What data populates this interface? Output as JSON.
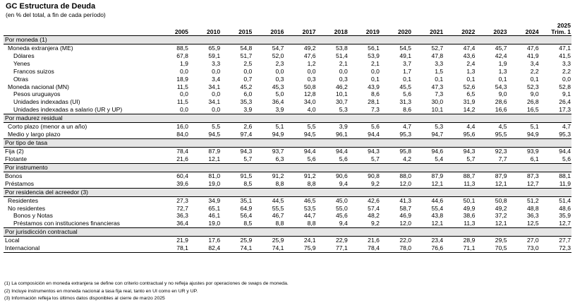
{
  "title": "GC Estructura de Deuda",
  "subtitle": "(en % del total, a fin de cada período)",
  "columns": [
    "2005",
    "2010",
    "2015",
    "2016",
    "2017",
    "2018",
    "2019",
    "2020",
    "2021",
    "2022",
    "2023",
    "2024"
  ],
  "last_column": {
    "line1": "2025",
    "line2": "Trim. 1"
  },
  "sections": [
    {
      "title": "Por moneda (1)",
      "rows": [
        {
          "label": "Moneda extranjera (ME)",
          "level": 1,
          "values": [
            "88,5",
            "65,9",
            "54,8",
            "54,7",
            "49,2",
            "53,8",
            "56,1",
            "54,5",
            "52,7",
            "47,4",
            "45,7",
            "47,6",
            "47,1"
          ]
        },
        {
          "label": "Dólares",
          "level": 2,
          "values": [
            "67,8",
            "59,1",
            "51,7",
            "52,0",
            "47,6",
            "51,4",
            "53,9",
            "49,1",
            "47,8",
            "43,6",
            "42,4",
            "41,9",
            "41,5"
          ]
        },
        {
          "label": "Yenes",
          "level": 2,
          "values": [
            "1,9",
            "3,3",
            "2,5",
            "2,3",
            "1,2",
            "2,1",
            "2,1",
            "3,7",
            "3,3",
            "2,4",
            "1,9",
            "3,4",
            "3,3"
          ]
        },
        {
          "label": "Francos suizos",
          "level": 2,
          "values": [
            "0,0",
            "0,0",
            "0,0",
            "0,0",
            "0,0",
            "0,0",
            "0,0",
            "1,7",
            "1,5",
            "1,3",
            "1,3",
            "2,2",
            "2,2"
          ]
        },
        {
          "label": "Otras",
          "level": 2,
          "values": [
            "18,9",
            "3,4",
            "0,7",
            "0,3",
            "0,3",
            "0,3",
            "0,1",
            "0,1",
            "0,1",
            "0,1",
            "0,1",
            "0,1",
            "0,0"
          ]
        },
        {
          "label": "Moneda nacional (MN)",
          "level": 1,
          "values": [
            "11,5",
            "34,1",
            "45,2",
            "45,3",
            "50,8",
            "46,2",
            "43,9",
            "45,5",
            "47,3",
            "52,6",
            "54,3",
            "52,3",
            "52,8"
          ]
        },
        {
          "label": "Pesos uruguayos",
          "level": 2,
          "values": [
            "0,0",
            "0,0",
            "6,0",
            "5,0",
            "12,8",
            "10,1",
            "8,6",
            "5,6",
            "7,3",
            "6,5",
            "9,0",
            "9,0",
            "9,1"
          ]
        },
        {
          "label": "Unidades indexadas (UI)",
          "level": 2,
          "values": [
            "11,5",
            "34,1",
            "35,3",
            "36,4",
            "34,0",
            "30,7",
            "28,1",
            "31,3",
            "30,0",
            "31,9",
            "28,6",
            "26,8",
            "26,4"
          ]
        },
        {
          "label": "Unidades indexadas a salario (UR y UP)",
          "level": 2,
          "values": [
            "0,0",
            "0,0",
            "3,9",
            "3,9",
            "4,0",
            "5,3",
            "7,3",
            "8,6",
            "10,1",
            "14,2",
            "16,6",
            "16,5",
            "17,3"
          ]
        }
      ]
    },
    {
      "title": "Por madurez residual",
      "rows": [
        {
          "label": "Corto plazo (menor a un año)",
          "level": 1,
          "values": [
            "16,0",
            "5,5",
            "2,6",
            "5,1",
            "5,5",
            "3,9",
            "5,6",
            "4,7",
            "5,3",
            "4,4",
            "4,5",
            "5,1",
            "4,7"
          ]
        },
        {
          "label": "Medio y largo plazo",
          "level": 1,
          "values": [
            "84,0",
            "94,5",
            "97,4",
            "94,9",
            "94,5",
            "96,1",
            "94,4",
            "95,3",
            "94,7",
            "95,6",
            "95,5",
            "94,9",
            "95,3"
          ]
        }
      ]
    },
    {
      "title": "Por tipo de tasa",
      "rows": [
        {
          "label": "Fija (2)",
          "level": 0,
          "values": [
            "78,4",
            "87,9",
            "94,3",
            "93,7",
            "94,4",
            "94,4",
            "94,3",
            "95,8",
            "94,6",
            "94,3",
            "92,3",
            "93,9",
            "94,4"
          ]
        },
        {
          "label": "Flotante",
          "level": 0,
          "values": [
            "21,6",
            "12,1",
            "5,7",
            "6,3",
            "5,6",
            "5,6",
            "5,7",
            "4,2",
            "5,4",
            "5,7",
            "7,7",
            "6,1",
            "5,6"
          ]
        }
      ]
    },
    {
      "title": "Por instrumento",
      "rows": [
        {
          "label": "Bonos",
          "level": 0,
          "values": [
            "60,4",
            "81,0",
            "91,5",
            "91,2",
            "91,2",
            "90,6",
            "90,8",
            "88,0",
            "87,9",
            "88,7",
            "87,9",
            "87,3",
            "88,1"
          ]
        },
        {
          "label": "Préstamos",
          "level": 0,
          "values": [
            "39,6",
            "19,0",
            "8,5",
            "8,8",
            "8,8",
            "9,4",
            "9,2",
            "12,0",
            "12,1",
            "11,3",
            "12,1",
            "12,7",
            "11,9"
          ]
        }
      ]
    },
    {
      "title": "Por residencia del acreedor (3)",
      "rows": [
        {
          "label": "Residentes",
          "level": 1,
          "values": [
            "27,3",
            "34,9",
            "35,1",
            "44,5",
            "46,5",
            "45,0",
            "42,6",
            "41,3",
            "44,6",
            "50,1",
            "50,8",
            "51,2",
            "51,4"
          ]
        },
        {
          "label": "No residentes",
          "level": 1,
          "values": [
            "72,7",
            "65,1",
            "64,9",
            "55,5",
            "53,5",
            "55,0",
            "57,4",
            "58,7",
            "55,4",
            "49,9",
            "49,2",
            "48,8",
            "48,6"
          ]
        },
        {
          "label": "Bonos y Notas",
          "level": 2,
          "values": [
            "36,3",
            "46,1",
            "56,4",
            "46,7",
            "44,7",
            "45,6",
            "48,2",
            "46,9",
            "43,8",
            "38,6",
            "37,2",
            "36,3",
            "35,9"
          ]
        },
        {
          "label": "Préstamos con instituciones financieras",
          "level": 2,
          "values": [
            "36,4",
            "19,0",
            "8,5",
            "8,8",
            "8,8",
            "9,4",
            "9,2",
            "12,0",
            "12,1",
            "11,3",
            "12,1",
            "12,5",
            "12,7"
          ]
        }
      ]
    },
    {
      "title": "Por jurisdicción contractual",
      "rows": [
        {
          "label": "Local",
          "level": 0,
          "values": [
            "21,9",
            "17,6",
            "25,9",
            "25,9",
            "24,1",
            "22,9",
            "21,6",
            "22,0",
            "23,4",
            "28,9",
            "29,5",
            "27,0",
            "27,7"
          ]
        },
        {
          "label": "Internacional",
          "level": 0,
          "values": [
            "78,1",
            "82,4",
            "74,1",
            "74,1",
            "75,9",
            "77,1",
            "78,4",
            "78,0",
            "76,6",
            "71,1",
            "70,5",
            "73,0",
            "72,3"
          ]
        }
      ]
    }
  ],
  "notes": [
    "(1) La composición en moneda extranjera se define con criterio contractual y no refleja ajustes por operaciones de swaps de moneda.",
    "(2) Incluye instrumentos en moneda nacional a tasa fija real, tanto en UI como en UR y UP.",
    "(3) Información refleja los últimos datos disponibles al cierre de marzo 2025"
  ]
}
